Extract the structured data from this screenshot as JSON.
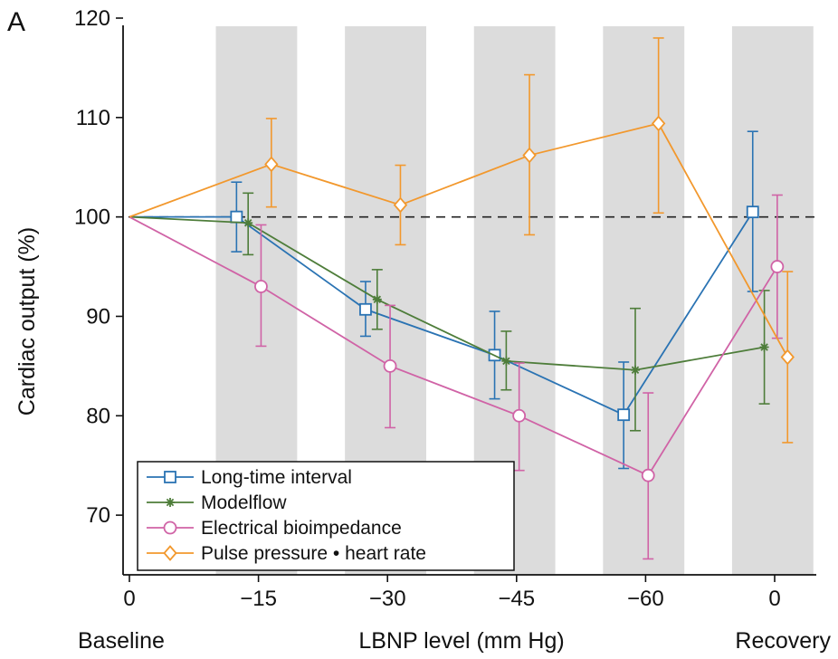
{
  "panel_label": "A",
  "chart_data": {
    "type": "line",
    "ylabel": "Cardiac output (%)",
    "xlabel": "LBNP level (mm Hg)",
    "x_end_labels": {
      "left": "Baseline",
      "right": "Recovery"
    },
    "ylim": [
      64,
      120
    ],
    "yticks": [
      70,
      80,
      90,
      100,
      110,
      120
    ],
    "xlim": [
      -0.2,
      5.3
    ],
    "xticks": [
      {
        "pos": 0,
        "label": "0"
      },
      {
        "pos": 1,
        "label": "−15"
      },
      {
        "pos": 2,
        "label": "−30"
      },
      {
        "pos": 3,
        "label": "−45"
      },
      {
        "pos": 4,
        "label": "−60"
      },
      {
        "pos": 5,
        "label": "0"
      }
    ],
    "shaded_bands": [
      [
        0.67,
        1.3
      ],
      [
        1.67,
        2.3
      ],
      [
        2.67,
        3.3
      ],
      [
        3.67,
        4.3
      ],
      [
        4.67,
        5.3
      ]
    ],
    "reference_line": {
      "y": 100,
      "style": "dashed"
    },
    "series": [
      {
        "name": "Long-time interval",
        "color": "#2a73b3",
        "marker": "square",
        "x": [
          0,
          0.83,
          1.83,
          2.83,
          3.83,
          4.83
        ],
        "y": [
          100,
          100,
          90.7,
          86.1,
          80.1,
          100.5
        ],
        "err_low": [
          null,
          96.5,
          88,
          81.7,
          74.7,
          92.5
        ],
        "err_high": [
          null,
          103.5,
          93.5,
          90.5,
          85.4,
          108.6
        ]
      },
      {
        "name": "Modelflow",
        "color": "#4e7d3a",
        "marker": "asterisk",
        "x": [
          0,
          0.92,
          1.92,
          2.92,
          3.92,
          4.92
        ],
        "y": [
          100,
          99.4,
          91.7,
          85.5,
          84.6,
          86.9
        ],
        "err_low": [
          null,
          96.2,
          88.7,
          82.6,
          78.5,
          81.2
        ],
        "err_high": [
          null,
          102.4,
          94.7,
          88.5,
          90.8,
          92.6
        ]
      },
      {
        "name": "Electrical bioimpedance",
        "color": "#d063a6",
        "marker": "circle",
        "x": [
          0,
          1.02,
          2.02,
          3.02,
          4.02,
          5.02
        ],
        "y": [
          100,
          93,
          85,
          80,
          74,
          95
        ],
        "err_low": [
          null,
          87,
          78.8,
          74.5,
          65.6,
          87.8
        ],
        "err_high": [
          null,
          99.2,
          91.1,
          85.3,
          82.3,
          102.2
        ]
      },
      {
        "name": "Pulse pressure • heart rate",
        "color": "#f2982d",
        "marker": "diamond",
        "x": [
          0,
          1.1,
          2.1,
          3.1,
          4.1,
          5.1
        ],
        "y": [
          100,
          105.3,
          101.2,
          106.2,
          109.4,
          85.9
        ],
        "err_low": [
          null,
          101,
          97.2,
          98.2,
          100.4,
          77.3
        ],
        "err_high": [
          null,
          109.9,
          105.2,
          114.3,
          118,
          94.5
        ]
      }
    ],
    "legend_position": "bottom-left"
  }
}
